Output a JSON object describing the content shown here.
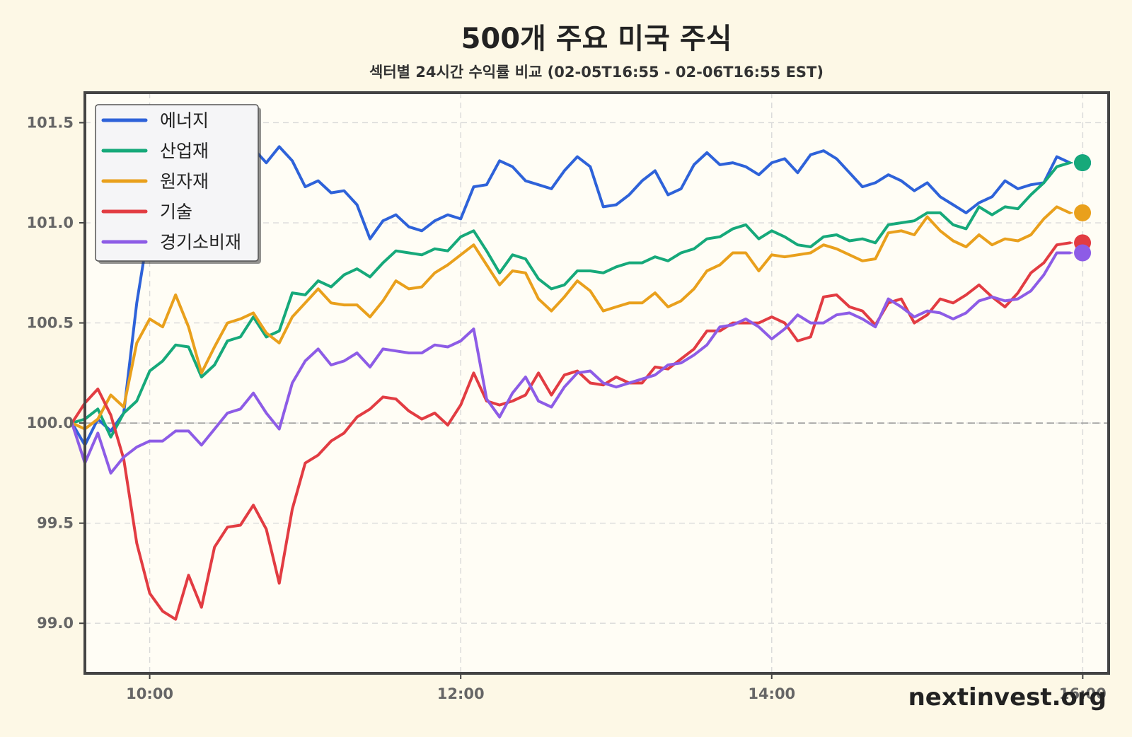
{
  "chart_data": {
    "type": "line",
    "title": "500개 주요 미국 주식",
    "subtitle": "섹터별 24시간 수익률 비교 (02-05T16:55 - 02-06T16:55 EST)",
    "xlabel": "",
    "ylabel": "",
    "x_ticks": [
      "10:00",
      "12:00",
      "14:00",
      "16:00"
    ],
    "y_ticks": [
      "99.0",
      "99.5",
      "100.0",
      "100.5",
      "101.0",
      "101.5"
    ],
    "ylim": [
      98.75,
      101.65
    ],
    "xlim": [
      "09:35",
      "16:10"
    ],
    "baseline": 100.0,
    "grid": true,
    "legend_position": "top-left",
    "x": [
      "09:30",
      "09:35",
      "09:40",
      "09:45",
      "09:50",
      "09:55",
      "10:00",
      "10:05",
      "10:10",
      "10:15",
      "10:20",
      "10:25",
      "10:30",
      "10:35",
      "10:40",
      "10:45",
      "10:50",
      "10:55",
      "11:00",
      "11:05",
      "11:10",
      "11:15",
      "11:20",
      "11:25",
      "11:30",
      "11:35",
      "11:40",
      "11:45",
      "11:50",
      "11:55",
      "12:00",
      "12:05",
      "12:10",
      "12:15",
      "12:20",
      "12:25",
      "12:30",
      "12:35",
      "12:40",
      "12:45",
      "12:50",
      "12:55",
      "13:00",
      "13:05",
      "13:10",
      "13:15",
      "13:20",
      "13:25",
      "13:30",
      "13:35",
      "13:40",
      "13:45",
      "13:50",
      "13:55",
      "14:00",
      "14:05",
      "14:10",
      "14:15",
      "14:20",
      "14:25",
      "14:30",
      "14:35",
      "14:40",
      "14:45",
      "14:50",
      "14:55",
      "15:00",
      "15:05",
      "15:10",
      "15:15",
      "15:20",
      "15:25",
      "15:30",
      "15:35",
      "15:40",
      "15:45",
      "15:50",
      "15:55"
    ],
    "series": [
      {
        "name": "에너지",
        "color": "#2e62d9",
        "values": [
          100.0,
          99.89,
          100.02,
          99.96,
          100.05,
          100.6,
          101.0,
          101.2,
          101.4,
          101.23,
          101.3,
          101.4,
          101.4,
          101.28,
          101.37,
          101.3,
          101.38,
          101.31,
          101.18,
          101.21,
          101.15,
          101.16,
          101.09,
          100.92,
          101.01,
          101.04,
          100.98,
          100.96,
          101.01,
          101.04,
          101.02,
          101.18,
          101.19,
          101.31,
          101.28,
          101.21,
          101.19,
          101.17,
          101.26,
          101.33,
          101.28,
          101.08,
          101.09,
          101.14,
          101.21,
          101.26,
          101.14,
          101.17,
          101.29,
          101.35,
          101.29,
          101.3,
          101.28,
          101.24,
          101.3,
          101.32,
          101.25,
          101.34,
          101.36,
          101.32,
          101.25,
          101.18,
          101.2,
          101.24,
          101.21,
          101.16,
          101.2,
          101.13,
          101.09,
          101.05,
          101.1,
          101.13,
          101.21,
          101.17,
          101.19,
          101.2,
          101.33,
          101.3
        ]
      },
      {
        "name": "산업재",
        "color": "#16a97a",
        "values": [
          100.0,
          100.02,
          100.07,
          99.93,
          100.05,
          100.11,
          100.26,
          100.31,
          100.39,
          100.38,
          100.23,
          100.29,
          100.41,
          100.43,
          100.53,
          100.43,
          100.46,
          100.65,
          100.64,
          100.71,
          100.68,
          100.74,
          100.77,
          100.73,
          100.8,
          100.86,
          100.85,
          100.84,
          100.87,
          100.86,
          100.93,
          100.96,
          100.86,
          100.75,
          100.84,
          100.82,
          100.72,
          100.67,
          100.69,
          100.76,
          100.76,
          100.75,
          100.78,
          100.8,
          100.8,
          100.83,
          100.81,
          100.85,
          100.87,
          100.92,
          100.93,
          100.97,
          100.99,
          100.92,
          100.96,
          100.93,
          100.89,
          100.88,
          100.93,
          100.94,
          100.91,
          100.92,
          100.9,
          100.99,
          101.0,
          101.01,
          101.05,
          101.05,
          100.99,
          100.97,
          101.08,
          101.04,
          101.08,
          101.07,
          101.14,
          101.2,
          101.28,
          101.3
        ]
      },
      {
        "name": "원자재",
        "color": "#e9a01c",
        "values": [
          100.0,
          99.97,
          100.02,
          100.14,
          100.08,
          100.4,
          100.52,
          100.48,
          100.64,
          100.48,
          100.25,
          100.38,
          100.5,
          100.52,
          100.55,
          100.45,
          100.4,
          100.53,
          100.6,
          100.67,
          100.6,
          100.59,
          100.59,
          100.53,
          100.61,
          100.71,
          100.67,
          100.68,
          100.75,
          100.79,
          100.84,
          100.89,
          100.79,
          100.69,
          100.76,
          100.75,
          100.62,
          100.56,
          100.63,
          100.71,
          100.66,
          100.56,
          100.58,
          100.6,
          100.6,
          100.65,
          100.58,
          100.61,
          100.67,
          100.76,
          100.79,
          100.85,
          100.85,
          100.76,
          100.84,
          100.83,
          100.84,
          100.85,
          100.89,
          100.87,
          100.84,
          100.81,
          100.82,
          100.95,
          100.96,
          100.94,
          101.03,
          100.96,
          100.91,
          100.88,
          100.94,
          100.89,
          100.92,
          100.91,
          100.94,
          101.02,
          101.08,
          101.05
        ]
      },
      {
        "name": "기술",
        "color": "#e23c42",
        "values": [
          100.0,
          100.1,
          100.17,
          100.04,
          99.82,
          99.4,
          99.15,
          99.06,
          99.02,
          99.24,
          99.08,
          99.38,
          99.48,
          99.49,
          99.59,
          99.47,
          99.2,
          99.57,
          99.8,
          99.84,
          99.91,
          99.95,
          100.03,
          100.07,
          100.13,
          100.12,
          100.06,
          100.02,
          100.05,
          99.99,
          100.09,
          100.25,
          100.11,
          100.09,
          100.11,
          100.14,
          100.25,
          100.14,
          100.24,
          100.26,
          100.2,
          100.19,
          100.23,
          100.2,
          100.2,
          100.28,
          100.27,
          100.32,
          100.37,
          100.46,
          100.46,
          100.5,
          100.5,
          100.5,
          100.53,
          100.5,
          100.41,
          100.43,
          100.63,
          100.64,
          100.58,
          100.56,
          100.49,
          100.6,
          100.62,
          100.5,
          100.54,
          100.62,
          100.6,
          100.64,
          100.69,
          100.63,
          100.58,
          100.65,
          100.75,
          100.8,
          100.89,
          100.9
        ]
      },
      {
        "name": "경기소비재",
        "color": "#8d5ce6",
        "values": [
          100.0,
          99.8,
          99.95,
          99.75,
          99.83,
          99.88,
          99.91,
          99.91,
          99.96,
          99.96,
          99.89,
          99.97,
          100.05,
          100.07,
          100.15,
          100.05,
          99.97,
          100.2,
          100.31,
          100.37,
          100.29,
          100.31,
          100.35,
          100.28,
          100.37,
          100.36,
          100.35,
          100.35,
          100.39,
          100.38,
          100.41,
          100.47,
          100.12,
          100.03,
          100.15,
          100.23,
          100.11,
          100.08,
          100.18,
          100.25,
          100.26,
          100.2,
          100.18,
          100.2,
          100.22,
          100.24,
          100.29,
          100.3,
          100.34,
          100.39,
          100.48,
          100.49,
          100.52,
          100.48,
          100.42,
          100.47,
          100.54,
          100.5,
          100.5,
          100.54,
          100.55,
          100.52,
          100.48,
          100.62,
          100.58,
          100.53,
          100.56,
          100.55,
          100.52,
          100.55,
          100.61,
          100.63,
          100.61,
          100.62,
          100.66,
          100.74,
          100.85,
          100.85
        ]
      }
    ]
  },
  "watermark": "nextinvest.org"
}
